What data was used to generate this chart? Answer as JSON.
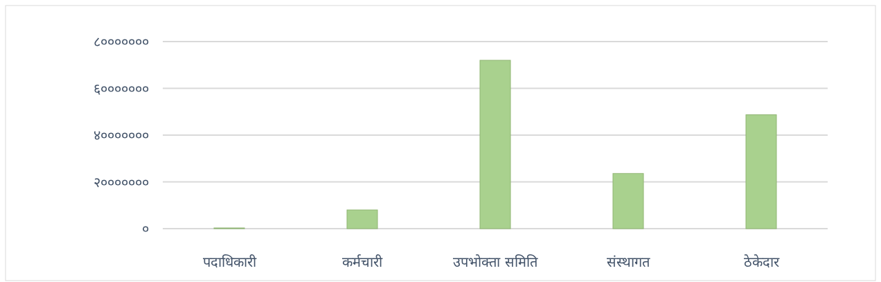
{
  "chart_data": {
    "type": "bar",
    "categories": [
      "पदाधिकारी",
      "कर्मचारी",
      "उपभोक्ता समिति",
      "संस्थागत",
      "ठेकेदार"
    ],
    "values": [
      300000,
      8000000,
      72000000,
      23600000,
      48700000
    ],
    "color": "#a9d18e",
    "ylim": [
      0,
      80000000
    ],
    "yticks": [
      {
        "value": 0,
        "label": "०"
      },
      {
        "value": 20000000,
        "label": "२०००००००"
      },
      {
        "value": 40000000,
        "label": "४०००००००"
      },
      {
        "value": 60000000,
        "label": "६०००००००"
      },
      {
        "value": 80000000,
        "label": "८०००००००"
      }
    ],
    "grid": "y"
  }
}
